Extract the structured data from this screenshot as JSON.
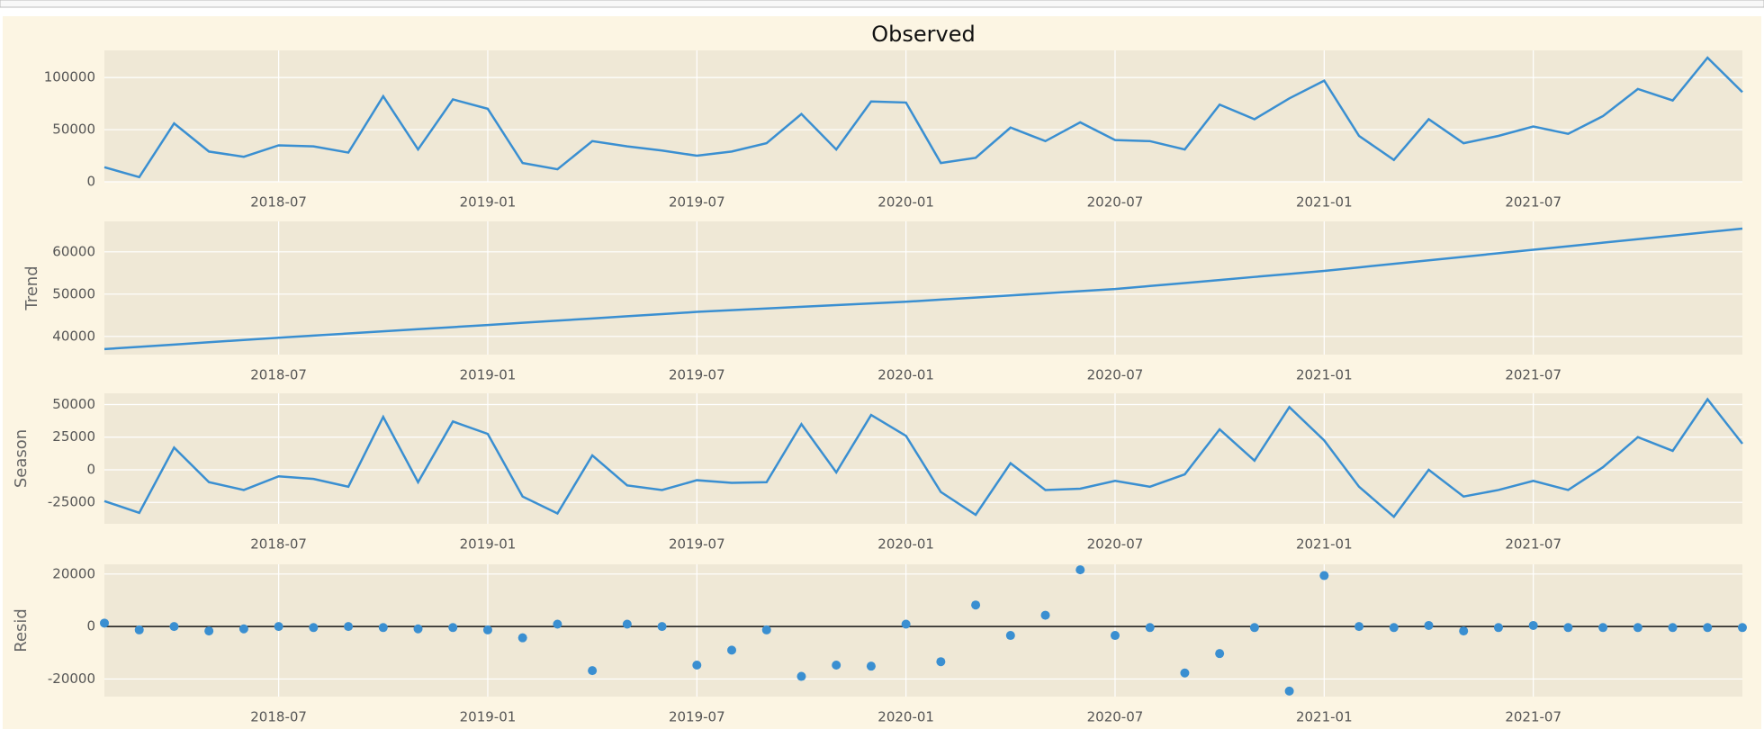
{
  "chart_data": [
    {
      "type": "line",
      "title": "Observed",
      "color": "#3a8fd1",
      "grid": true,
      "x": [
        "2018-02",
        "2018-03",
        "2018-04",
        "2018-05",
        "2018-06",
        "2018-07",
        "2018-08",
        "2018-09",
        "2018-10",
        "2018-11",
        "2018-12",
        "2019-01",
        "2019-02",
        "2019-03",
        "2019-04",
        "2019-05",
        "2019-06",
        "2019-07",
        "2019-08",
        "2019-09",
        "2019-10",
        "2019-11",
        "2019-12",
        "2020-01",
        "2020-02",
        "2020-03",
        "2020-04",
        "2020-05",
        "2020-06",
        "2020-07",
        "2020-08",
        "2020-09",
        "2020-10",
        "2020-11",
        "2020-12",
        "2021-01",
        "2021-02",
        "2021-03",
        "2021-04",
        "2021-05",
        "2021-06",
        "2021-07",
        "2021-08",
        "2021-09",
        "2021-10",
        "2021-11",
        "2021-12",
        "2022-01"
      ],
      "values": [
        14000,
        4500,
        56000,
        29000,
        24000,
        35000,
        34000,
        28000,
        82000,
        31000,
        79000,
        70000,
        18000,
        12000,
        39000,
        34000,
        30000,
        25000,
        29000,
        37000,
        65000,
        31000,
        77000,
        76000,
        18000,
        23000,
        52000,
        39000,
        57000,
        40000,
        39000,
        31000,
        74000,
        60000,
        80000,
        97000,
        44000,
        21000,
        60000,
        37000,
        44000,
        53000,
        46000,
        63000,
        89000,
        78000,
        119000,
        86000
      ],
      "xlim": [
        "2018-02",
        "2022-01"
      ],
      "xticks": [
        "2018-07",
        "2019-01",
        "2019-07",
        "2020-01",
        "2020-07",
        "2021-01",
        "2021-07"
      ],
      "ylim": [
        0,
        126000
      ],
      "yticks": [
        0,
        50000,
        100000
      ]
    },
    {
      "type": "line",
      "ylabel": "Trend",
      "color": "#3a8fd1",
      "grid": true,
      "x": [
        "2018-02",
        "2018-03",
        "2018-04",
        "2018-05",
        "2018-06",
        "2018-07",
        "2018-08",
        "2018-09",
        "2018-10",
        "2018-11",
        "2018-12",
        "2019-01",
        "2019-02",
        "2019-03",
        "2019-04",
        "2019-05",
        "2019-06",
        "2019-07",
        "2019-08",
        "2019-09",
        "2019-10",
        "2019-11",
        "2019-12",
        "2020-01",
        "2020-02",
        "2020-03",
        "2020-04",
        "2020-05",
        "2020-06",
        "2020-07",
        "2020-08",
        "2020-09",
        "2020-10",
        "2020-11",
        "2020-12",
        "2021-01",
        "2021-02",
        "2021-03",
        "2021-04",
        "2021-05",
        "2021-06",
        "2021-07",
        "2021-08",
        "2021-09",
        "2021-10",
        "2021-11",
        "2021-12",
        "2022-01"
      ],
      "values": [
        37000,
        37540,
        38080,
        38620,
        39160,
        39700,
        40200,
        40700,
        41200,
        41700,
        42200,
        42700,
        43220,
        43730,
        44250,
        44770,
        45280,
        45800,
        46200,
        46600,
        47000,
        47400,
        47800,
        48200,
        48700,
        49200,
        49700,
        50200,
        50700,
        51200,
        51920,
        52630,
        53350,
        54070,
        54780,
        55500,
        56330,
        57170,
        58000,
        58830,
        59670,
        60500,
        61330,
        62170,
        63000,
        63830,
        64670,
        65500
      ],
      "xlim": [
        "2018-02",
        "2022-01"
      ],
      "xticks": [
        "2018-07",
        "2019-01",
        "2019-07",
        "2020-01",
        "2020-07",
        "2021-01",
        "2021-07"
      ],
      "ylim": [
        35700,
        67200
      ],
      "yticks": [
        40000,
        50000,
        60000
      ]
    },
    {
      "type": "line",
      "ylabel": "Season",
      "color": "#3a8fd1",
      "grid": true,
      "x": [
        "2018-02",
        "2018-03",
        "2018-04",
        "2018-05",
        "2018-06",
        "2018-07",
        "2018-08",
        "2018-09",
        "2018-10",
        "2018-11",
        "2018-12",
        "2019-01",
        "2019-02",
        "2019-03",
        "2019-04",
        "2019-05",
        "2019-06",
        "2019-07",
        "2019-08",
        "2019-09",
        "2019-10",
        "2019-11",
        "2019-12",
        "2020-01",
        "2020-02",
        "2020-03",
        "2020-04",
        "2020-05",
        "2020-06",
        "2020-07",
        "2020-08",
        "2020-09",
        "2020-10",
        "2020-11",
        "2020-12",
        "2021-01",
        "2021-02",
        "2021-03",
        "2021-04",
        "2021-05",
        "2021-06",
        "2021-07",
        "2021-08",
        "2021-09",
        "2021-10",
        "2021-11",
        "2021-12",
        "2022-01"
      ],
      "values": [
        -24000,
        -33000,
        17000,
        -9500,
        -15500,
        -5000,
        -7000,
        -13000,
        40500,
        -9500,
        37000,
        27500,
        -20500,
        -33500,
        11000,
        -12000,
        -15500,
        -8000,
        -10000,
        -9500,
        35000,
        -2000,
        42000,
        26000,
        -17000,
        -34500,
        5000,
        -15500,
        -14500,
        -8500,
        -13000,
        -3500,
        31000,
        7000,
        48000,
        22500,
        -13000,
        -36000,
        0,
        -20500,
        -15500,
        -8500,
        -15500,
        2000,
        25000,
        14500,
        54000,
        20000
      ],
      "xlim": [
        "2018-02",
        "2022-01"
      ],
      "xticks": [
        "2018-07",
        "2019-01",
        "2019-07",
        "2020-01",
        "2020-07",
        "2021-01",
        "2021-07"
      ],
      "ylim": [
        -41400,
        58600
      ],
      "yticks": [
        -25000,
        0,
        25000,
        50000
      ]
    },
    {
      "type": "scatter",
      "ylabel": "Resid",
      "color": "#3a8fd1",
      "grid": true,
      "x": [
        "2018-02",
        "2018-03",
        "2018-04",
        "2018-05",
        "2018-06",
        "2018-07",
        "2018-08",
        "2018-09",
        "2018-10",
        "2018-11",
        "2018-12",
        "2019-01",
        "2019-02",
        "2019-03",
        "2019-04",
        "2019-05",
        "2019-06",
        "2019-07",
        "2019-08",
        "2019-09",
        "2019-10",
        "2019-11",
        "2019-12",
        "2020-01",
        "2020-02",
        "2020-03",
        "2020-04",
        "2020-05",
        "2020-06",
        "2020-07",
        "2020-08",
        "2020-09",
        "2020-10",
        "2020-11",
        "2020-12",
        "2021-01",
        "2021-02",
        "2021-03",
        "2021-04",
        "2021-05",
        "2021-06",
        "2021-07",
        "2021-08",
        "2021-09",
        "2021-10",
        "2021-11",
        "2021-12",
        "2022-01"
      ],
      "values": [
        1300,
        -1300,
        0,
        -1700,
        -900,
        0,
        -400,
        0,
        -400,
        -900,
        -400,
        -1300,
        -4300,
        900,
        -16800,
        900,
        0,
        -14700,
        -9000,
        -1300,
        -19000,
        -14700,
        -15100,
        900,
        -13400,
        8200,
        -3400,
        4300,
        21600,
        -3400,
        -400,
        -17700,
        -10300,
        -400,
        -24600,
        19400,
        0,
        -400,
        400,
        -1700,
        -400,
        400,
        -400,
        -400,
        -400,
        -400,
        -400,
        -400
      ],
      "xlim": [
        "2018-02",
        "2022-01"
      ],
      "xticks": [
        "2018-07",
        "2019-01",
        "2019-07",
        "2020-01",
        "2020-07",
        "2021-01",
        "2021-07"
      ],
      "ylim": [
        -26700,
        23700
      ],
      "yticks": [
        -20000,
        0,
        20000
      ]
    }
  ]
}
